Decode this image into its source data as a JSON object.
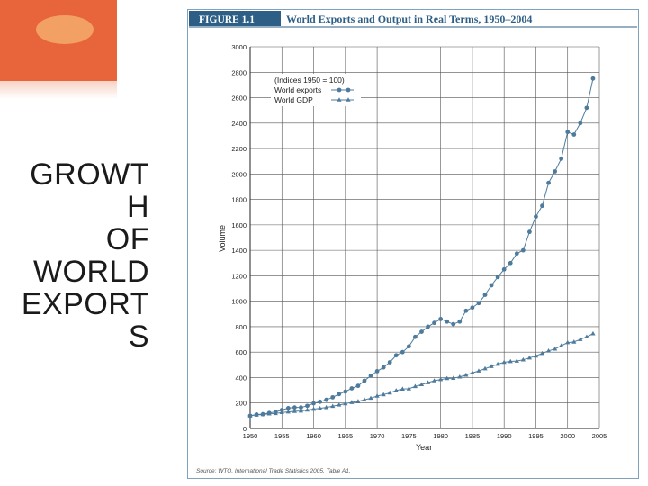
{
  "slide": {
    "title_lines": [
      "GROWT",
      "H",
      "OF",
      "WORLD",
      "EXPORT",
      "S"
    ]
  },
  "chart_data": {
    "type": "line",
    "figure_label": "FIGURE 1.1",
    "title": "World Exports and Output in Real Terms, 1950–2004",
    "xlabel": "Year",
    "ylabel": "Volume",
    "xlim": [
      1950,
      2005
    ],
    "ylim": [
      0,
      3000
    ],
    "x_ticks": [
      1950,
      1955,
      1960,
      1965,
      1970,
      1975,
      1980,
      1985,
      1990,
      1995,
      2000,
      2005
    ],
    "y_ticks": [
      0,
      200,
      400,
      600,
      800,
      1000,
      1200,
      1400,
      1600,
      1800,
      2000,
      2200,
      2400,
      2600,
      2800,
      3000
    ],
    "grid": true,
    "legend_title": "(Indices 1950 = 100)",
    "legend_position": "top-left",
    "x": [
      1950,
      1951,
      1952,
      1953,
      1954,
      1955,
      1956,
      1957,
      1958,
      1959,
      1960,
      1961,
      1962,
      1963,
      1964,
      1965,
      1966,
      1967,
      1968,
      1969,
      1970,
      1971,
      1972,
      1973,
      1974,
      1975,
      1976,
      1977,
      1978,
      1979,
      1980,
      1981,
      1982,
      1983,
      1984,
      1985,
      1986,
      1987,
      1988,
      1989,
      1990,
      1991,
      1992,
      1993,
      1994,
      1995,
      1996,
      1997,
      1998,
      1999,
      2000,
      2001,
      2002,
      2003,
      2004
    ],
    "series": [
      {
        "name": "World exports",
        "marker": "circle",
        "values": [
          100,
          110,
          112,
          122,
          130,
          145,
          160,
          165,
          165,
          178,
          198,
          210,
          225,
          245,
          270,
          290,
          315,
          335,
          375,
          415,
          450,
          480,
          520,
          575,
          600,
          645,
          720,
          760,
          800,
          830,
          860,
          840,
          820,
          840,
          925,
          950,
          985,
          1050,
          1125,
          1190,
          1250,
          1300,
          1375,
          1400,
          1545,
          1665,
          1750,
          1930,
          2020,
          2120,
          2330,
          2310,
          2400,
          2520,
          2750
        ]
      },
      {
        "name": "World GDP",
        "marker": "triangle",
        "values": [
          100,
          106,
          110,
          115,
          118,
          126,
          130,
          135,
          137,
          145,
          152,
          158,
          165,
          175,
          185,
          195,
          205,
          213,
          225,
          238,
          255,
          266,
          280,
          298,
          310,
          312,
          330,
          345,
          360,
          375,
          385,
          393,
          395,
          405,
          420,
          437,
          452,
          470,
          488,
          505,
          520,
          527,
          530,
          540,
          555,
          570,
          590,
          610,
          625,
          650,
          675,
          680,
          700,
          720,
          745
        ]
      }
    ],
    "source_note": "Source: WTO, International Trade Statistics 2005, Table A1."
  },
  "colors": {
    "series": "#4e7b9c",
    "axis": "#222222",
    "grid": "#555555",
    "frame": "#7fa3bf",
    "header_bar": "#2d5f86",
    "header_text": "#ffffff",
    "title_text": "#2d5f86",
    "corner_orange": "#e8643a"
  }
}
